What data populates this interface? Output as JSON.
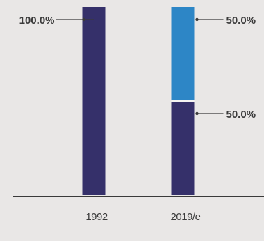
{
  "chart_data": {
    "type": "bar",
    "stacked": true,
    "categories": [
      "1992",
      "2019/e"
    ],
    "series": [
      {
        "color": "#35306a",
        "values": [
          100.0,
          50.0
        ],
        "labels": [
          "100.0%",
          "50.0%"
        ]
      },
      {
        "color": "#2d86c6",
        "values": [
          0,
          50.0
        ],
        "labels": [
          "",
          "50.0%"
        ]
      }
    ],
    "ylim": [
      0,
      100
    ],
    "grid": false,
    "legend": "none",
    "colors": {
      "background": "#e9e7e6",
      "axis": "#3a3a3a",
      "text": "#3a3a3a"
    }
  }
}
